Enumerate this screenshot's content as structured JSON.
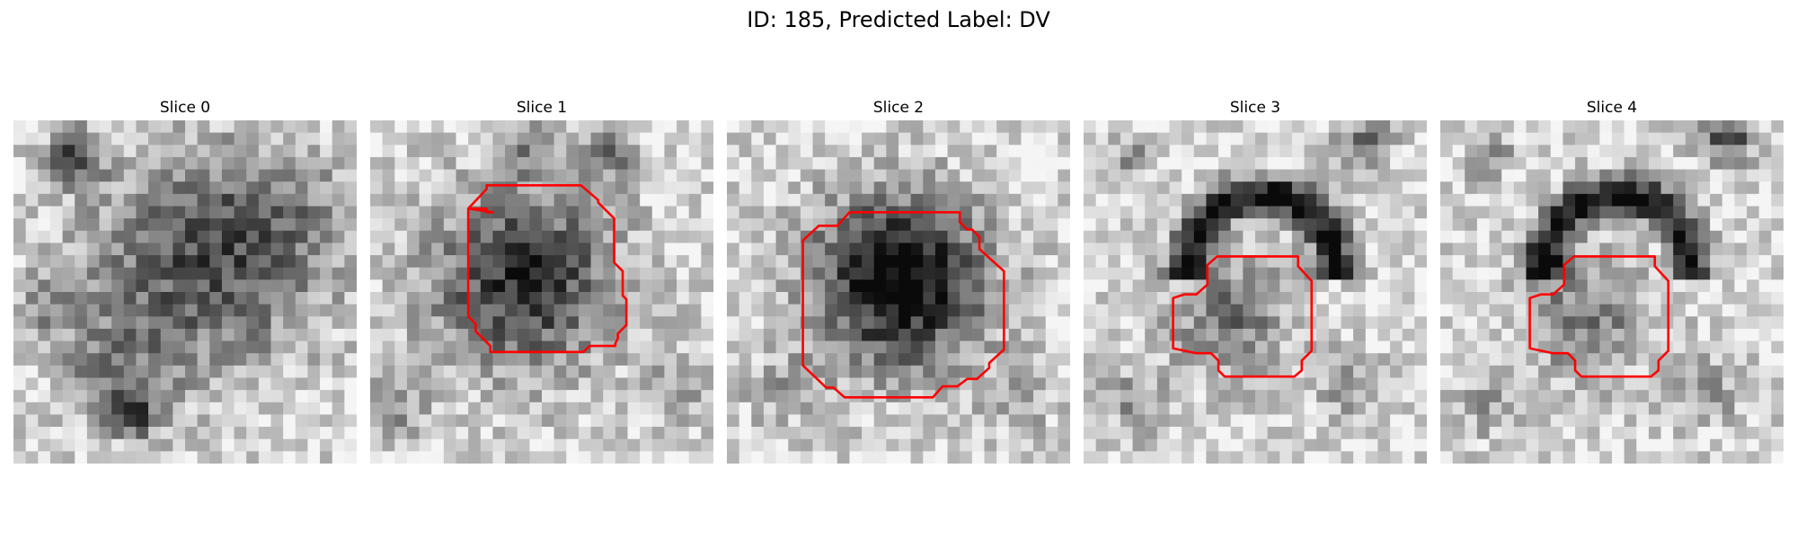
{
  "figure": {
    "title": "ID: 185, Predicted Label: DV"
  },
  "colors": {
    "contour": "#ff0000",
    "background": "#ffffff"
  },
  "panels": [
    {
      "title": "Slice 0",
      "has_contour": false
    },
    {
      "title": "Slice 1",
      "has_contour": true
    },
    {
      "title": "Slice 2",
      "has_contour": true
    },
    {
      "title": "Slice 3",
      "has_contour": true
    },
    {
      "title": "Slice 4",
      "has_contour": true
    }
  ]
}
